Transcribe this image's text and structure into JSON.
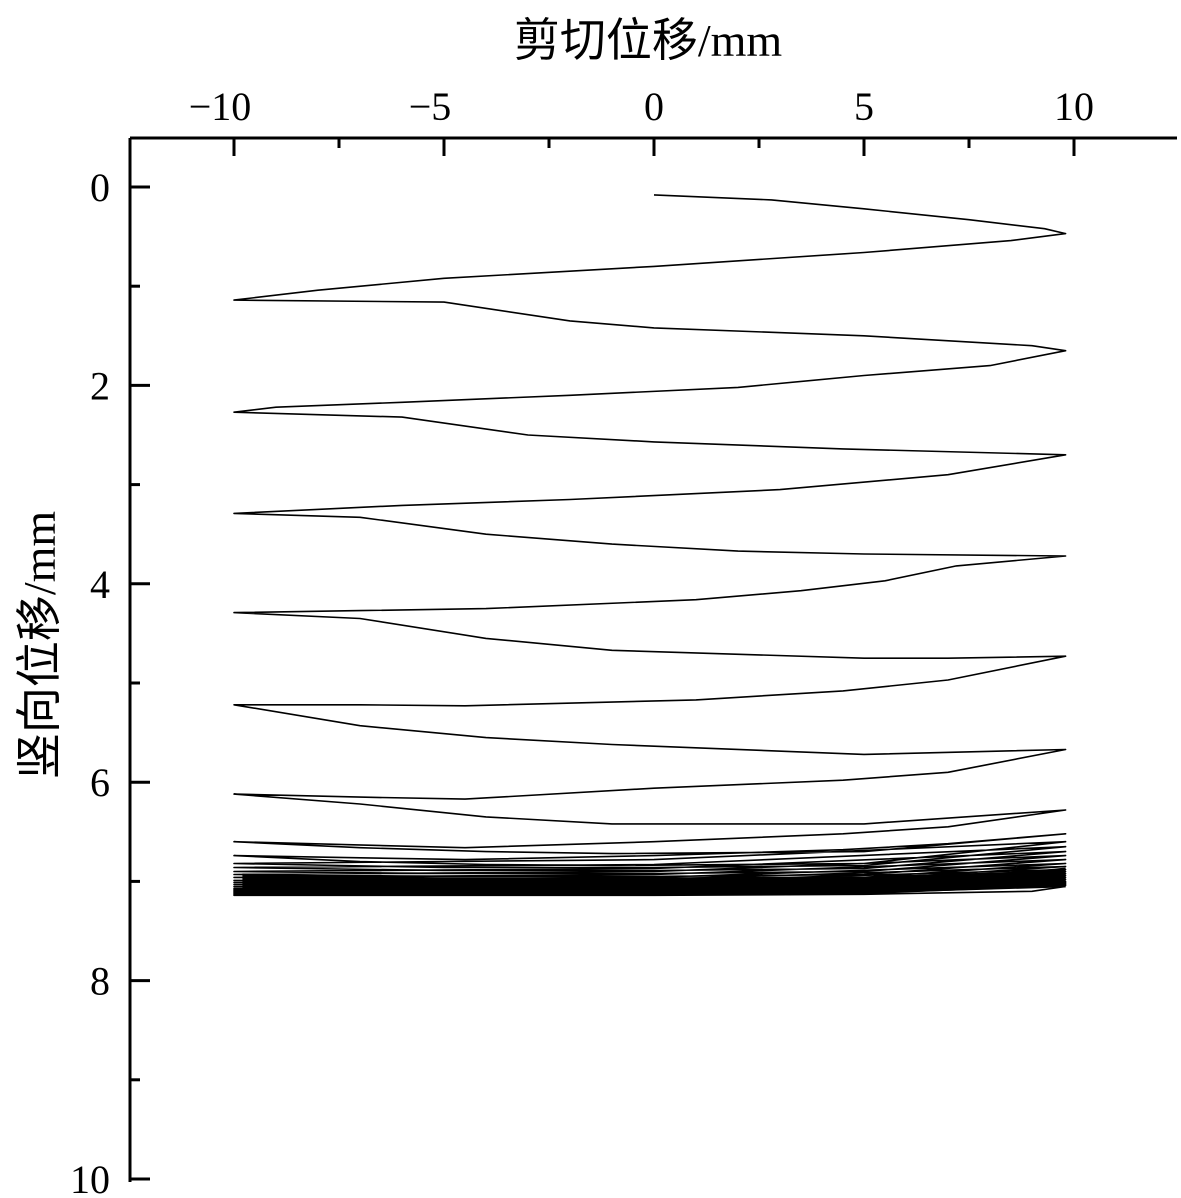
{
  "chart_data": {
    "type": "line",
    "title": "",
    "xlabel": "剪切位移/mm",
    "ylabel": "竖向位移/mm",
    "x_axis_position": "top",
    "y_axis_inverted": true,
    "xlim": [
      -12.5,
      12.5
    ],
    "ylim": [
      0,
      10
    ],
    "x_ticks": [
      -10,
      -5,
      0,
      5,
      10
    ],
    "x_tick_labels": [
      "−10",
      "−5",
      "0",
      "5",
      "10"
    ],
    "y_ticks": [
      0,
      2,
      4,
      6,
      8,
      10
    ],
    "y_tick_labels": [
      "0",
      "2",
      "4",
      "6",
      "8",
      "10"
    ],
    "grid": false,
    "series": [
      {
        "x": [
          0,
          2.8,
          5,
          7.5,
          9.3,
          9.8,
          8.5,
          5,
          0,
          -5,
          -8,
          -10,
          -5,
          -2,
          0,
          5,
          9,
          9.8,
          8,
          5,
          2,
          -2,
          -6,
          -9,
          -10,
          -6,
          -3,
          0,
          4.5,
          9.8,
          7,
          3,
          -2,
          -6,
          -10,
          -7,
          -4,
          -1,
          2,
          5,
          9.8,
          7.2,
          5.5,
          3.5,
          1,
          -4,
          -7,
          -10,
          -7,
          -4,
          -1,
          5,
          7,
          9.8,
          7,
          4.5,
          1,
          -4.5,
          -7,
          -10,
          -7,
          -4,
          -1,
          5,
          9.8,
          7,
          4.5,
          0,
          -4.5,
          -7,
          -10,
          -7,
          -4,
          -1,
          5,
          9.8,
          7,
          4.5,
          0,
          -4.5,
          -10,
          -7,
          -4,
          -1,
          5,
          9.8,
          7,
          4.5,
          0,
          -4.5,
          -10,
          -7,
          -4,
          -1,
          5,
          9.8,
          0,
          -10,
          -5,
          0,
          5,
          9.8,
          0,
          -10,
          -5,
          0,
          5,
          9.8,
          0,
          -10,
          -5,
          0,
          5,
          9.8,
          0,
          -10,
          -5,
          0,
          5,
          9.8,
          0,
          -10,
          -5,
          0,
          5,
          9.8,
          0,
          -10,
          -5,
          0,
          5,
          9.8,
          0,
          -10,
          -5,
          0,
          5,
          9.8,
          0,
          -10,
          -5,
          0,
          5,
          9.8,
          0,
          -10,
          -5,
          0,
          5,
          9.8,
          0,
          -10,
          -5,
          0,
          5,
          9.8,
          0,
          -10,
          -5,
          0,
          5,
          9.8,
          0,
          -10,
          -5,
          0,
          5,
          9.8,
          0,
          -10,
          -5,
          0,
          5,
          9.8,
          0,
          -10,
          -5,
          0,
          5,
          9.8,
          0,
          -10,
          -5,
          0,
          5,
          9.8,
          0,
          -10,
          -5,
          0,
          5,
          9.8,
          0,
          -10,
          -5,
          0,
          5,
          9.8,
          0,
          -10,
          -5,
          0,
          5,
          9,
          9.8
        ],
        "y": [
          0.08,
          0.13,
          0.22,
          0.33,
          0.42,
          0.47,
          0.54,
          0.66,
          0.8,
          0.92,
          1.04,
          1.14,
          1.16,
          1.35,
          1.42,
          1.5,
          1.6,
          1.65,
          1.8,
          1.9,
          2.02,
          2.1,
          2.17,
          2.22,
          2.27,
          2.32,
          2.5,
          2.57,
          2.64,
          2.7,
          2.9,
          3.05,
          3.15,
          3.21,
          3.29,
          3.33,
          3.5,
          3.6,
          3.67,
          3.7,
          3.72,
          3.82,
          3.97,
          4.07,
          4.16,
          4.25,
          4.27,
          4.29,
          4.35,
          4.55,
          4.67,
          4.75,
          4.75,
          4.73,
          4.97,
          5.08,
          5.17,
          5.23,
          5.22,
          5.22,
          5.43,
          5.55,
          5.62,
          5.72,
          5.67,
          5.9,
          5.98,
          6.06,
          6.17,
          6.15,
          6.12,
          6.22,
          6.35,
          6.42,
          6.42,
          6.28,
          6.45,
          6.52,
          6.6,
          6.66,
          6.6,
          6.66,
          6.7,
          6.72,
          6.7,
          6.52,
          6.62,
          6.68,
          6.74,
          6.78,
          6.74,
          6.8,
          6.83,
          6.84,
          6.82,
          6.6,
          6.78,
          6.82,
          6.86,
          6.86,
          6.84,
          6.65,
          6.83,
          6.86,
          6.89,
          6.89,
          6.87,
          6.7,
          6.87,
          6.9,
          6.92,
          6.92,
          6.9,
          6.74,
          6.9,
          6.93,
          6.95,
          6.95,
          6.93,
          6.78,
          6.93,
          6.96,
          6.98,
          6.98,
          6.96,
          6.82,
          6.96,
          6.99,
          7.0,
          7.0,
          6.98,
          6.85,
          6.98,
          7.01,
          7.02,
          7.02,
          7.0,
          6.88,
          7.0,
          7.03,
          7.04,
          7.04,
          7.02,
          6.9,
          7.02,
          7.05,
          7.06,
          7.06,
          7.04,
          6.92,
          7.04,
          7.07,
          7.07,
          7.07,
          7.05,
          6.94,
          7.06,
          7.08,
          7.08,
          7.08,
          7.06,
          6.96,
          7.07,
          7.09,
          7.09,
          7.09,
          7.07,
          6.98,
          7.08,
          7.1,
          7.1,
          7.1,
          7.08,
          7.0,
          7.09,
          7.11,
          7.11,
          7.11,
          7.09,
          7.01,
          7.1,
          7.12,
          7.12,
          7.12,
          7.1,
          7.02,
          7.11,
          7.13,
          7.13,
          7.13,
          7.11,
          7.03,
          7.12,
          7.13,
          7.14,
          7.14,
          7.12,
          7.04,
          7.13,
          7.14,
          7.14,
          7.14,
          7.13,
          7.1,
          7.05
        ]
      }
    ]
  }
}
